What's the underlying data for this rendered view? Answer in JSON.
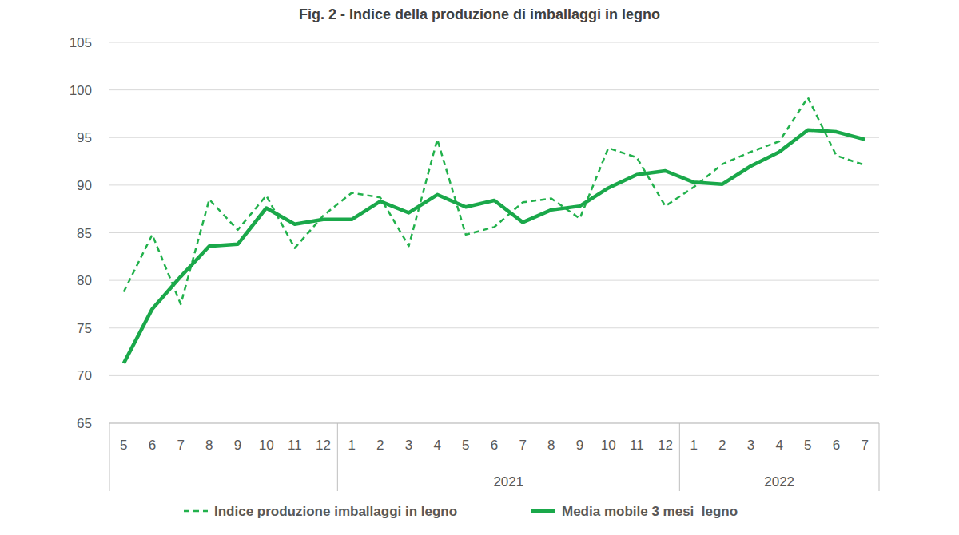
{
  "chart_data": {
    "type": "line",
    "title": "Fig. 2 - Indice della produzione di imballaggi in legno",
    "categories": [
      "5",
      "6",
      "7",
      "8",
      "9",
      "10",
      "11",
      "12",
      "1",
      "2",
      "3",
      "4",
      "5",
      "6",
      "7",
      "8",
      "9",
      "10",
      "11",
      "12",
      "1",
      "2",
      "3",
      "4",
      "5",
      "6",
      "7"
    ],
    "x_groups": [
      {
        "label": null,
        "count": 8
      },
      {
        "label": "2021",
        "count": 12
      },
      {
        "label": "2022",
        "count": 7
      }
    ],
    "series": [
      {
        "name": "Indice produzione imballaggi in legno",
        "color": "#22b14c",
        "line_style": "dashed",
        "values": [
          78.8,
          84.8,
          77.5,
          88.5,
          85.3,
          88.9,
          83.4,
          86.8,
          89.2,
          88.7,
          83.6,
          94.8,
          84.8,
          85.6,
          88.2,
          88.6,
          86.5,
          93.9,
          92.9,
          87.8,
          89.8,
          92.2,
          93.5,
          94.6,
          99.2,
          93.1,
          92.1
        ]
      },
      {
        "name": "Media mobile 3 mesi  legno",
        "color": "#1aa84a",
        "line_style": "solid",
        "values": [
          71.3,
          77.0,
          80.4,
          83.6,
          83.8,
          87.6,
          85.9,
          86.4,
          86.4,
          88.3,
          87.1,
          89.0,
          87.7,
          88.4,
          86.1,
          87.4,
          87.8,
          89.7,
          91.1,
          91.5,
          90.3,
          90.1,
          92.0,
          93.5,
          95.8,
          95.6,
          94.8
        ]
      }
    ],
    "ylim": [
      65,
      105
    ],
    "yticks": [
      65,
      70,
      75,
      80,
      85,
      90,
      95,
      100,
      105
    ],
    "grid": true,
    "legend": "bottom"
  }
}
